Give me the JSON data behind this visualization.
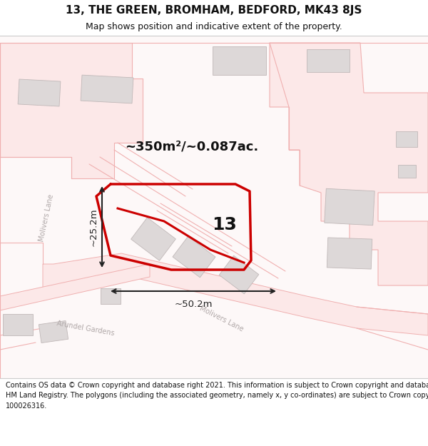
{
  "title": "13, THE GREEN, BROMHAM, BEDFORD, MK43 8JS",
  "subtitle": "Map shows position and indicative extent of the property.",
  "footer_line1": "Contains OS data © Crown copyright and database right 2021. This information is subject to Crown copyright and database rights 2023 and is reproduced with the permission of",
  "footer_line2": "HM Land Registry. The polygons (including the associated geometry, namely x, y co-ordinates) are subject to Crown copyright and database rights 2023 Ordnance Survey",
  "footer_line3": "100026316.",
  "area_label": "~350m²/~0.087ac.",
  "number_label": "13",
  "dim_horiz": "~50.2m",
  "dim_vert": "~25.2m",
  "bg_color": "#ffffff",
  "map_bg": "#fdf8f8",
  "road_color": "#f0b0b0",
  "road_fill": "#fce8e8",
  "building_color": "#ddd8d8",
  "building_edge": "#c0b8b8",
  "highlight_color": "#cc0000",
  "road_label_color": "#b0a8a8",
  "dim_color": "#222222",
  "title_color": "#111111",
  "footer_color": "#111111"
}
